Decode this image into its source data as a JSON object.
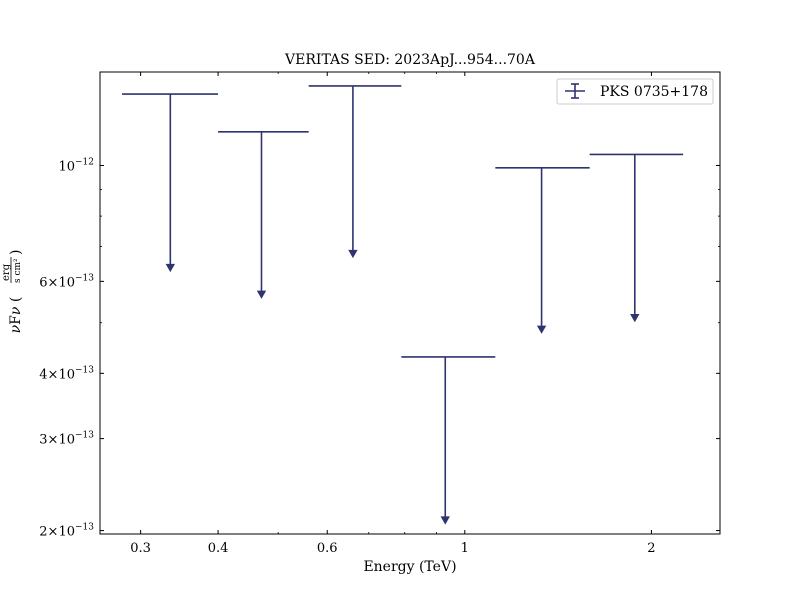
{
  "chart_data": {
    "type": "scatter",
    "title": "VERITAS SED: 2023ApJ...954...70A",
    "xlabel": "Energy (TeV)",
    "ylabel": "νFν (erg / s cm²)",
    "xscale": "log",
    "yscale": "log",
    "xlim": [
      0.258,
      2.58
    ],
    "ylim": [
      1.97e-13,
      1.51e-12
    ],
    "x_ticks": [
      {
        "value": 0.3,
        "label": "0.3"
      },
      {
        "value": 0.4,
        "label": "0.4"
      },
      {
        "value": 0.6,
        "label": "0.6"
      },
      {
        "value": 1,
        "label": "1"
      },
      {
        "value": 2,
        "label": "2"
      }
    ],
    "y_ticks": [
      {
        "value": 2e-13,
        "mantissa": "2",
        "exponent": "−13"
      },
      {
        "value": 3e-13,
        "mantissa": "3",
        "exponent": "−13"
      },
      {
        "value": 4e-13,
        "mantissa": "4",
        "exponent": "−13"
      },
      {
        "value": 6e-13,
        "mantissa": "6",
        "exponent": "−13"
      },
      {
        "value": 1e-12,
        "mantissa": "10",
        "exponent": "−12"
      }
    ],
    "legend": {
      "placement": "top-right"
    },
    "series": [
      {
        "name": "PKS 0735+178",
        "color": "#2e3470",
        "marker": "upper-limit",
        "points": [
          {
            "x": 0.335,
            "x_low": 0.28,
            "x_high": 0.4,
            "y_ul": 1.37e-12,
            "arrow_to": 6.3e-13
          },
          {
            "x": 0.47,
            "x_low": 0.4,
            "x_high": 0.56,
            "y_ul": 1.16e-12,
            "arrow_to": 5.6e-13
          },
          {
            "x": 0.66,
            "x_low": 0.56,
            "x_high": 0.79,
            "y_ul": 1.42e-12,
            "arrow_to": 6.7e-13
          },
          {
            "x": 0.93,
            "x_low": 0.79,
            "x_high": 1.12,
            "y_ul": 4.3e-13,
            "arrow_to": 2.07e-13
          },
          {
            "x": 1.33,
            "x_low": 1.12,
            "x_high": 1.59,
            "y_ul": 9.9e-13,
            "arrow_to": 4.8e-13
          },
          {
            "x": 1.88,
            "x_low": 1.59,
            "x_high": 2.25,
            "y_ul": 1.05e-12,
            "arrow_to": 5.05e-13
          }
        ]
      }
    ]
  }
}
